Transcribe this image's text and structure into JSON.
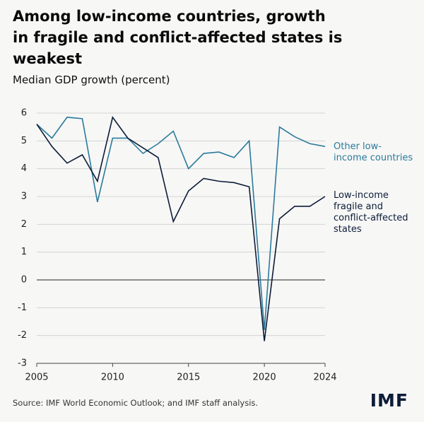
{
  "chart_data": {
    "type": "line",
    "title": "Among low-income countries, growth in fragile and conflict-affected states is weakest",
    "subtitle": "Median GDP growth (percent)",
    "source": "Source: IMF World Economic Outlook; and IMF staff analysis.",
    "logo": "IMF",
    "x": [
      2005,
      2006,
      2007,
      2008,
      2009,
      2010,
      2011,
      2012,
      2013,
      2014,
      2015,
      2016,
      2017,
      2018,
      2019,
      2020,
      2021,
      2022,
      2023,
      2024
    ],
    "series": [
      {
        "name": "Other low-income countries",
        "color": "#2a7b9b",
        "values": [
          5.6,
          5.1,
          5.85,
          5.8,
          2.8,
          5.1,
          5.1,
          4.55,
          4.9,
          5.35,
          4.0,
          4.55,
          4.6,
          4.4,
          5.0,
          -1.8,
          5.5,
          5.15,
          4.9,
          4.8
        ]
      },
      {
        "name": "Low-income fragile and conflict-affected states",
        "color": "#0d1c38",
        "values": [
          5.6,
          4.8,
          4.2,
          4.5,
          3.55,
          5.85,
          5.1,
          4.75,
          4.4,
          2.1,
          3.2,
          3.65,
          3.55,
          3.5,
          3.35,
          -2.2,
          2.2,
          2.65,
          2.65,
          3.0
        ]
      }
    ],
    "xlim": [
      2005,
      2024
    ],
    "xticks": [
      2005,
      2010,
      2015,
      2020,
      2024
    ],
    "ylim": [
      -3,
      6
    ],
    "yticks": [
      -3,
      -2,
      -1,
      0,
      1,
      2,
      3,
      4,
      5,
      6
    ],
    "grid": true
  }
}
